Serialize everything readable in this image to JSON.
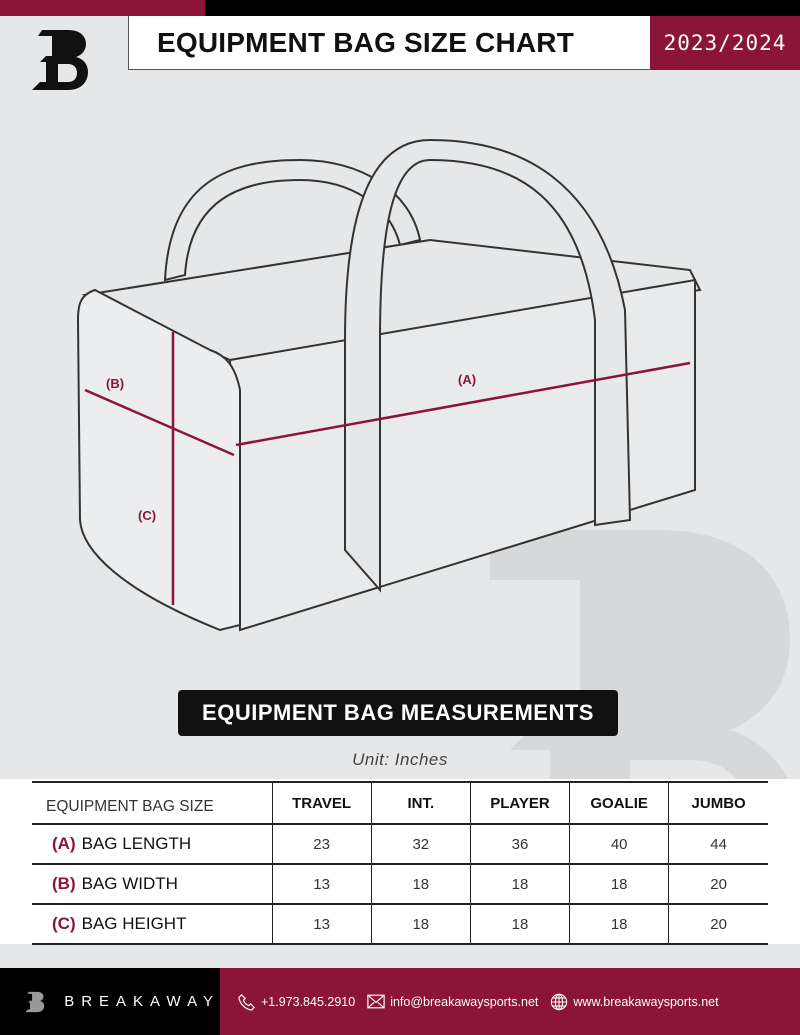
{
  "header": {
    "title": "EQUIPMENT BAG SIZE CHART",
    "season": "2023/2024",
    "logo_letter": "B"
  },
  "diagram": {
    "labels": {
      "a": "(A)",
      "b": "(B)",
      "c": "(C)"
    }
  },
  "section_title": "EQUIPMENT BAG MEASUREMENTS",
  "unit": "Unit: Inches",
  "table": {
    "header": [
      "EQUIPMENT BAG SIZE",
      "TRAVEL",
      "INT.",
      "PLAYER",
      "GOALIE",
      "JUMBO"
    ],
    "rows": [
      {
        "code": "(A)",
        "label": "BAG LENGTH",
        "values": [
          "23",
          "32",
          "36",
          "40",
          "44"
        ]
      },
      {
        "code": "(B)",
        "label": "BAG WIDTH",
        "values": [
          "13",
          "18",
          "18",
          "18",
          "20"
        ]
      },
      {
        "code": "(C)",
        "label": "BAG HEIGHT",
        "values": [
          "13",
          "18",
          "18",
          "18",
          "20"
        ]
      }
    ]
  },
  "footer": {
    "brand": "BREAKAWAY",
    "phone": "+1.973.845.2910",
    "email": "info@breakawaysports.net",
    "website": "www.breakawaysports.net"
  },
  "colors": {
    "accent": "#8a1538",
    "background": "#e6e7e8"
  }
}
